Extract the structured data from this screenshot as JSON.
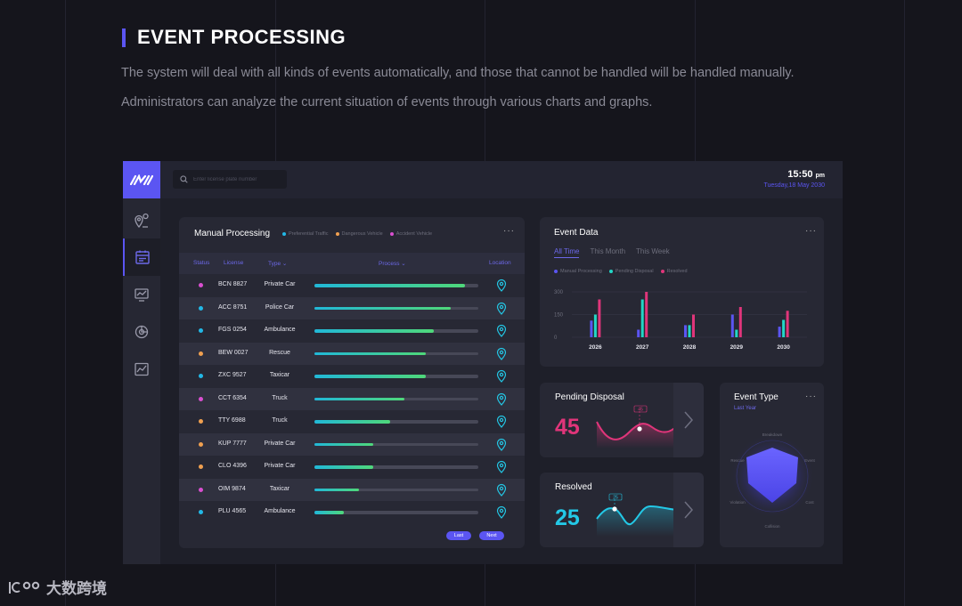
{
  "section": {
    "title": "EVENT PROCESSING",
    "desc1": "The system will deal with all kinds of events automatically, and those that cannot be handled will be handled manually.",
    "desc2": "Administrators can analyze the current situation of events through various charts and graphs."
  },
  "app": {
    "search_placeholder": "Enter license plate number",
    "time": "15:50",
    "ampm": "pm",
    "date": "Tuesday,18 May 2030"
  },
  "manual": {
    "title": "Manual Processing",
    "more": "···",
    "legend": [
      {
        "label": "Preferential Traffic",
        "color": "#22b8e6"
      },
      {
        "label": "Dangerous Vehicle",
        "color": "#f0a050"
      },
      {
        "label": "Accident Vehicle",
        "color": "#d94fd0"
      }
    ],
    "headers": {
      "status": "Status",
      "license": "License",
      "type": "Type ⌄",
      "process": "Process ⌄",
      "location": "Location"
    },
    "rows": [
      {
        "license": "BCN 8827",
        "type": "Private Car",
        "progress": 0.92,
        "color": "#d94fd0"
      },
      {
        "license": "ACC 8751",
        "type": "Police Car",
        "progress": 0.83,
        "color": "#22b8e6"
      },
      {
        "license": "FGS 0254",
        "type": "Ambulance",
        "progress": 0.73,
        "color": "#22b8e6"
      },
      {
        "license": "BEW 0027",
        "type": "Rescue",
        "progress": 0.68,
        "color": "#f0a050"
      },
      {
        "license": "ZXC 9527",
        "type": "Taxicar",
        "progress": 0.68,
        "color": "#22b8e6"
      },
      {
        "license": "CCT 6354",
        "type": "Truck",
        "progress": 0.55,
        "color": "#d94fd0"
      },
      {
        "license": "TTY 6988",
        "type": "Truck",
        "progress": 0.46,
        "color": "#f0a050"
      },
      {
        "license": "KUP 7777",
        "type": "Private Car",
        "progress": 0.36,
        "color": "#f0a050"
      },
      {
        "license": "CLO 4396",
        "type": "Private Car",
        "progress": 0.36,
        "color": "#f0a050"
      },
      {
        "license": "OIM 9874",
        "type": "Taxicar",
        "progress": 0.27,
        "color": "#d94fd0"
      },
      {
        "license": "PLU 4565",
        "type": "Ambulance",
        "progress": 0.18,
        "color": "#22b8e6"
      }
    ],
    "last": "Last",
    "next": "Next"
  },
  "event_data": {
    "title": "Event Data",
    "more": "···",
    "tabs": [
      "All Time",
      "This Month",
      "This Week"
    ],
    "legend": [
      {
        "label": "Manual Processing",
        "color": "#5b55f2"
      },
      {
        "label": "Pending Disposal",
        "color": "#23d6c6"
      },
      {
        "label": "Resolved",
        "color": "#e0357a"
      }
    ]
  },
  "chart_data": {
    "type": "bar",
    "categories": [
      "2026",
      "2027",
      "2028",
      "2029",
      "2030"
    ],
    "series": [
      {
        "name": "Manual Processing",
        "values": [
          110,
          50,
          80,
          150,
          70
        ]
      },
      {
        "name": "Pending Disposal",
        "values": [
          150,
          250,
          80,
          50,
          115
        ]
      },
      {
        "name": "Resolved",
        "values": [
          250,
          300,
          150,
          200,
          175
        ]
      }
    ],
    "yticks": [
      "300",
      "150",
      "0"
    ],
    "ylim": [
      0,
      300
    ]
  },
  "pending": {
    "title": "Pending Disposal",
    "value": "45",
    "tag": "45"
  },
  "resolved": {
    "title": "Resolved",
    "value": "25",
    "tag": "25"
  },
  "event_type": {
    "title": "Event Type",
    "subtitle": "Last Year",
    "more": "···",
    "labels": [
      "Breakdown",
      "Event",
      "Cost",
      "Collision",
      "Violation",
      "Rescue"
    ]
  },
  "watermark": {
    "text": "大数跨境",
    "logo": "1c00"
  }
}
